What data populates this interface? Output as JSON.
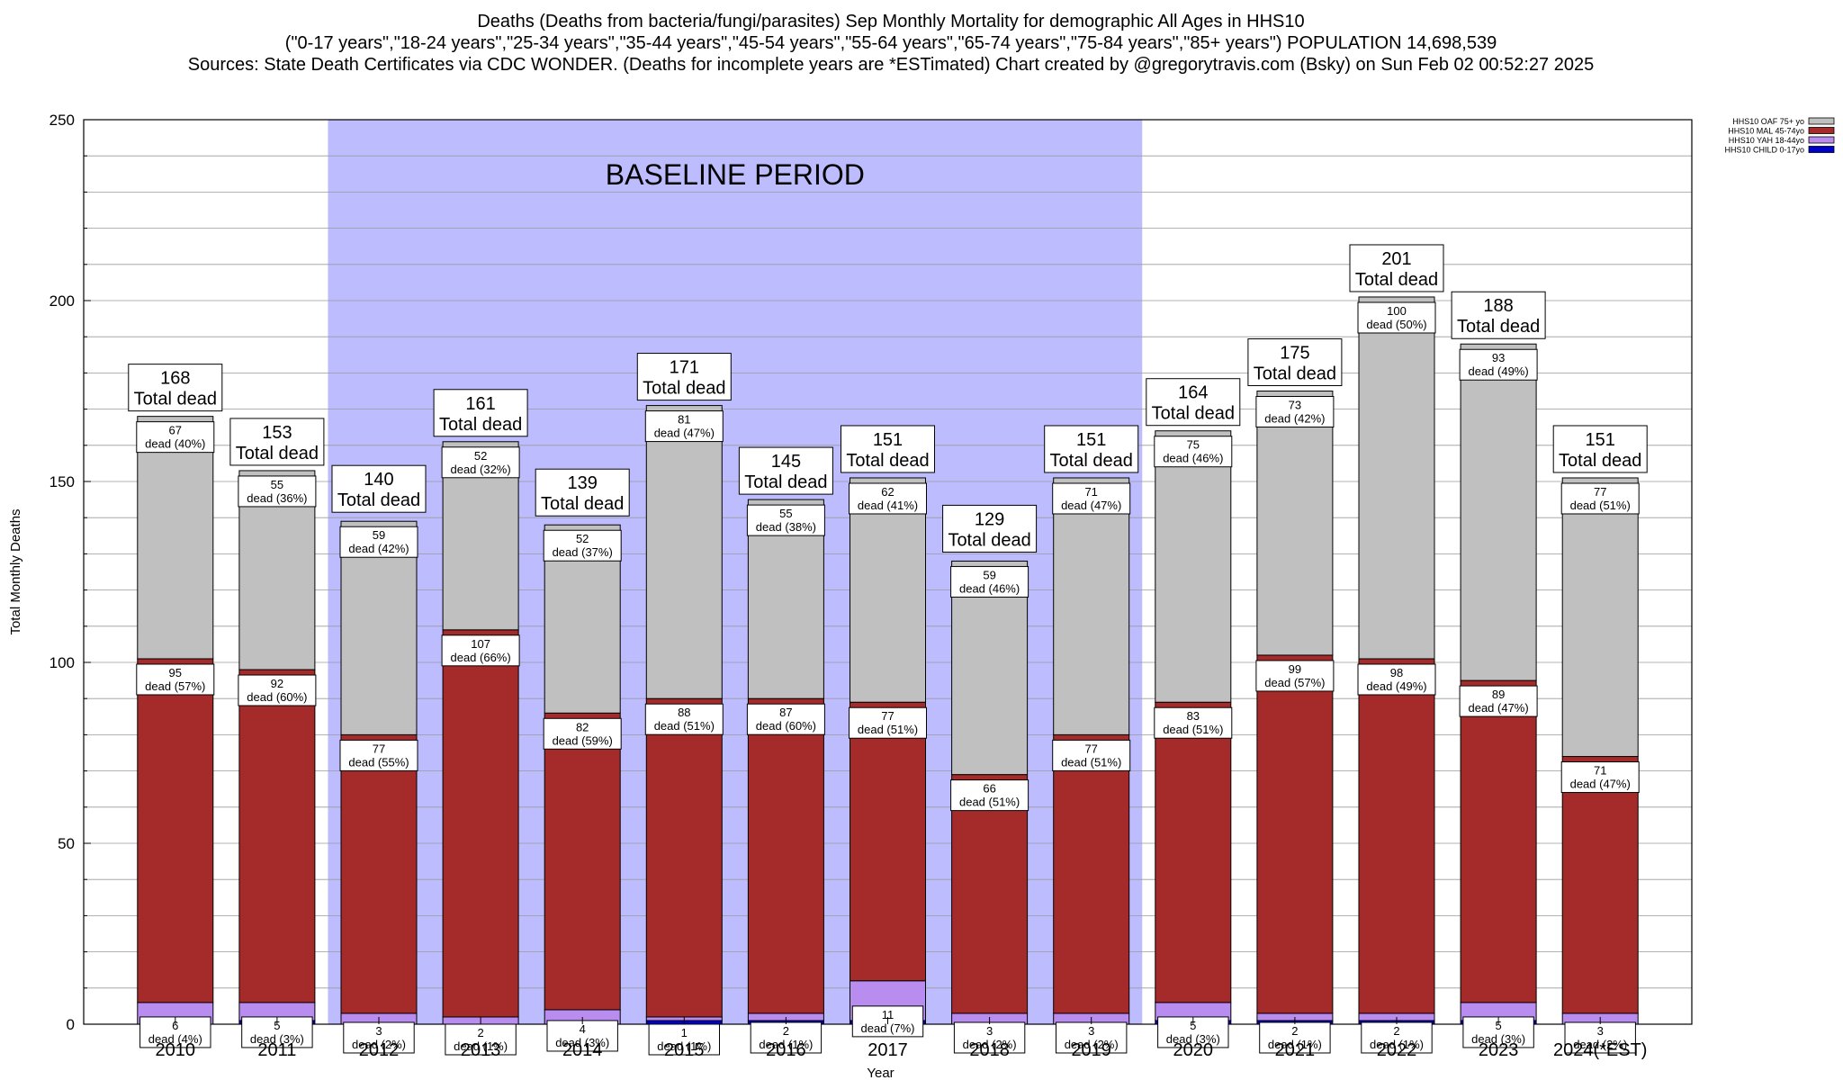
{
  "chart_data": {
    "type": "bar",
    "stacked": true,
    "title_lines": [
      "Deaths (Deaths from bacteria/fungi/parasites) Sep Monthly Mortality for demographic All Ages in HHS10",
      "(\"0-17 years\",\"18-24 years\",\"25-34 years\",\"35-44 years\",\"45-54 years\",\"55-64 years\",\"65-74 years\",\"75-84 years\",\"85+ years\") POPULATION 14,698,539",
      "Sources: State Death Certificates via CDC WONDER. (Deaths for incomplete years are *ESTimated)                Chart created by @gregorytravis.com (Bsky) on Sun Feb 02 00:52:27 2025"
    ],
    "xlabel": "Year",
    "ylabel": "Total Monthly Deaths",
    "ylim": [
      0,
      250
    ],
    "yticks": [
      0,
      50,
      100,
      150,
      200,
      250
    ],
    "grid": true,
    "legend_position": "top-right",
    "baseline": {
      "label": "BASELINE PERIOD",
      "from": "2012",
      "to": "2019",
      "color": "#bcbcff"
    },
    "total_suffix": "Total dead",
    "categories": [
      "2010",
      "2011",
      "2012",
      "2013",
      "2014",
      "2015",
      "2016",
      "2017",
      "2018",
      "2019",
      "2020",
      "2021",
      "2022",
      "2023",
      "2024(*EST)"
    ],
    "totals": [
      168,
      153,
      140,
      161,
      139,
      171,
      145,
      151,
      129,
      151,
      164,
      175,
      201,
      188,
      151
    ],
    "series": [
      {
        "name": "HHS10 CHILD 0-17yo",
        "color": "#0000cd",
        "values": [
          0,
          1,
          0,
          0,
          0,
          1,
          1,
          1,
          0,
          0,
          1,
          1,
          1,
          1,
          0
        ],
        "labels": [
          "",
          "",
          "",
          "",
          "",
          "",
          "",
          "",
          "",
          "",
          "",
          "",
          "",
          "",
          ""
        ]
      },
      {
        "name": "HHS10 YAH 18-44yo",
        "color": "#b98cf0",
        "values": [
          6,
          5,
          3,
          2,
          4,
          1,
          2,
          11,
          3,
          3,
          5,
          2,
          2,
          5,
          3
        ],
        "labels": [
          "6\ndead (4%)",
          "5\ndead (3%)",
          "3\ndead (2%)",
          "2\ndead (1%)",
          "4\ndead (3%)",
          "1\ndead (1%)",
          "2\ndead (1%)",
          "11\ndead (7%)",
          "3\ndead (2%)",
          "3\ndead (2%)",
          "5\ndead (3%)",
          "2\ndead (1%)",
          "2\ndead (1%)",
          "5\ndead (3%)",
          "3\ndead (2%)"
        ]
      },
      {
        "name": "HHS10 MAL 45-74yo",
        "color": "#a52a2a",
        "values": [
          95,
          92,
          77,
          107,
          82,
          88,
          87,
          77,
          66,
          77,
          83,
          99,
          98,
          89,
          71
        ],
        "labels": [
          "95\ndead (57%)",
          "92\ndead (60%)",
          "77\ndead (55%)",
          "107\ndead (66%)",
          "82\ndead (59%)",
          "88\ndead (51%)",
          "87\ndead (60%)",
          "77\ndead (51%)",
          "66\ndead (51%)",
          "77\ndead (51%)",
          "83\ndead (51%)",
          "99\ndead (57%)",
          "98\ndead (49%)",
          "89\ndead (47%)",
          "71\ndead (47%)"
        ]
      },
      {
        "name": "HHS10 OAF 75+ yo",
        "color": "#c0c0c0",
        "values": [
          67,
          55,
          59,
          52,
          52,
          81,
          55,
          62,
          59,
          71,
          75,
          73,
          100,
          93,
          77
        ],
        "labels": [
          "67\ndead (40%)",
          "55\ndead (36%)",
          "59\ndead (42%)",
          "52\ndead (32%)",
          "52\ndead (37%)",
          "81\ndead (47%)",
          "55\ndead (38%)",
          "62\ndead (41%)",
          "59\ndead (46%)",
          "71\ndead (47%)",
          "75\ndead (46%)",
          "73\ndead (42%)",
          "100\ndead (50%)",
          "93\ndead (49%)",
          "77\ndead (51%)"
        ]
      }
    ]
  }
}
